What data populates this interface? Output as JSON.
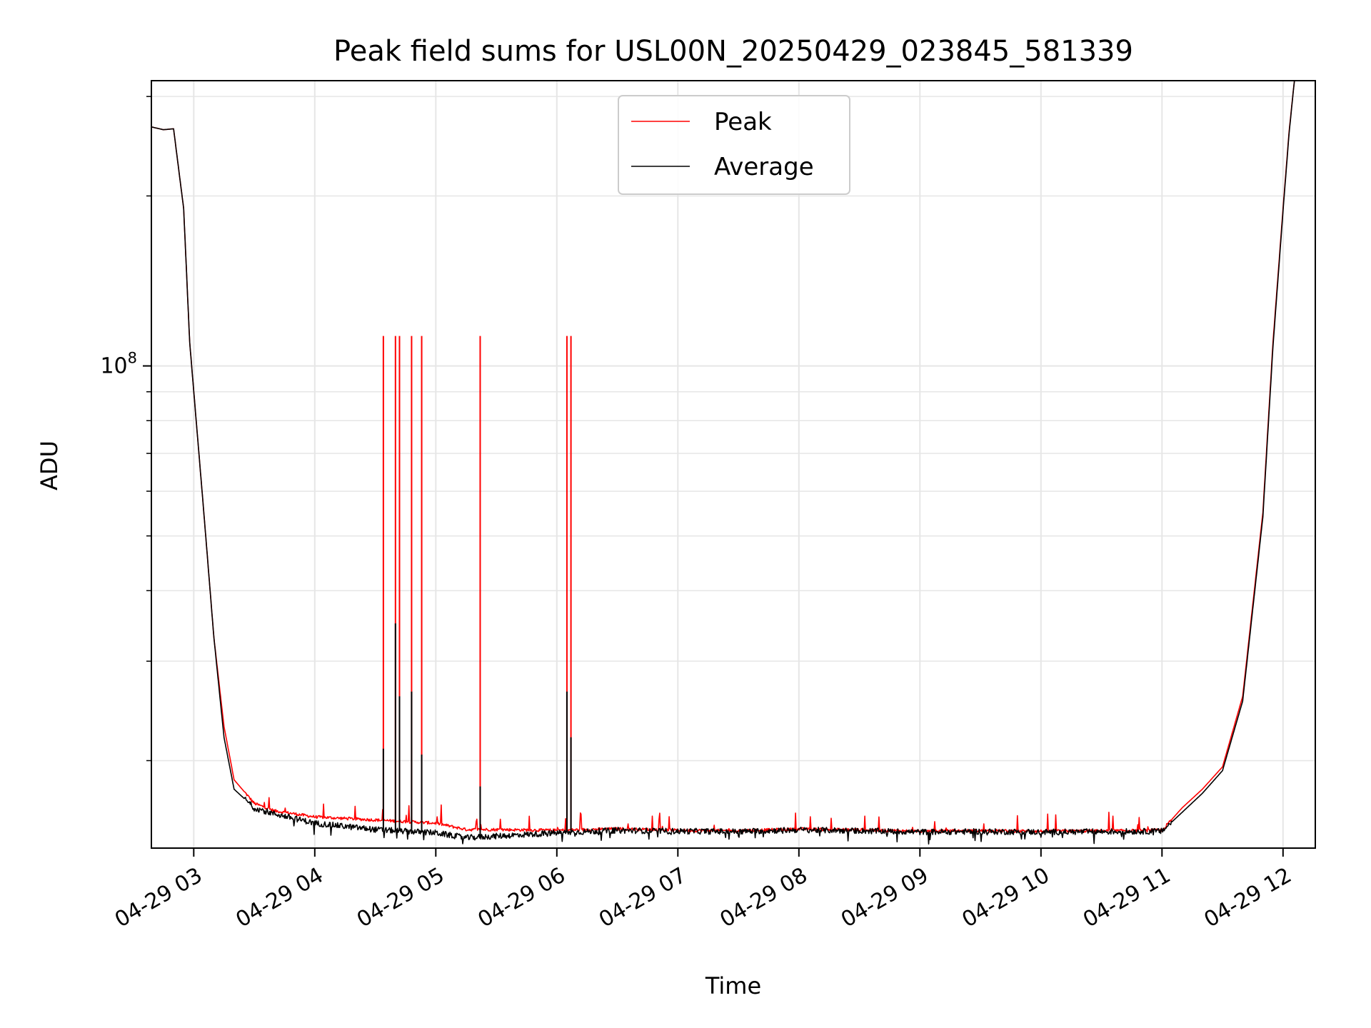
{
  "chart_data": {
    "type": "line",
    "title": "Peak field sums for USL00N_20250429_023845_581339",
    "xlabel": "Time",
    "ylabel": "ADU",
    "y_scale": "log",
    "ylim": [
      14000000,
      320000000
    ],
    "xlim": [
      "2025-04-29 02:39",
      "2025-04-29 12:16"
    ],
    "grid": true,
    "legend_position": "top-center",
    "x_ticks": [
      "04-29 03",
      "04-29 04",
      "04-29 05",
      "04-29 06",
      "04-29 07",
      "04-29 08",
      "04-29 09",
      "04-29 10",
      "04-29 11",
      "04-29 12"
    ],
    "y_major_ticks": [
      {
        "value": 100000000,
        "base": "10",
        "exp": "8"
      }
    ],
    "y_minor_ticks": [
      20000000,
      30000000,
      40000000,
      50000000,
      60000000,
      70000000,
      80000000,
      90000000,
      200000000,
      300000000
    ],
    "series": [
      {
        "name": "Peak",
        "color": "#ff0000",
        "points": [
          [
            "2025-04-29 02:39",
            265000000
          ],
          [
            "2025-04-29 02:45",
            262000000
          ],
          [
            "2025-04-29 02:50",
            263000000
          ],
          [
            "2025-04-29 02:55",
            190000000
          ],
          [
            "2025-04-29 02:58",
            110000000
          ],
          [
            "2025-04-29 03:05",
            55000000
          ],
          [
            "2025-04-29 03:10",
            33000000
          ],
          [
            "2025-04-29 03:15",
            23000000
          ],
          [
            "2025-04-29 03:20",
            18500000
          ],
          [
            "2025-04-29 03:30",
            16800000
          ],
          [
            "2025-04-29 03:40",
            16300000
          ],
          [
            "2025-04-29 04:00",
            15900000
          ],
          [
            "2025-04-29 04:30",
            15700000
          ],
          [
            "2025-04-29 05:00",
            15500000
          ],
          [
            "2025-04-29 05:15",
            15100000
          ],
          [
            "2025-04-29 05:30",
            15100000
          ],
          [
            "2025-04-29 06:00",
            15050000
          ],
          [
            "2025-04-29 06:30",
            15150000
          ],
          [
            "2025-04-29 07:00",
            15050000
          ],
          [
            "2025-04-29 07:30",
            15030000
          ],
          [
            "2025-04-29 08:00",
            15130000
          ],
          [
            "2025-04-29 08:30",
            15080000
          ],
          [
            "2025-04-29 09:00",
            15000000
          ],
          [
            "2025-04-29 09:30",
            15030000
          ],
          [
            "2025-04-29 10:00",
            15000000
          ],
          [
            "2025-04-29 10:30",
            15020000
          ],
          [
            "2025-04-29 11:00",
            15050000
          ],
          [
            "2025-04-29 11:10",
            16500000
          ],
          [
            "2025-04-29 11:20",
            17800000
          ],
          [
            "2025-04-29 11:30",
            19500000
          ],
          [
            "2025-04-29 11:40",
            26000000
          ],
          [
            "2025-04-29 11:50",
            55000000
          ],
          [
            "2025-04-29 11:55",
            110000000
          ],
          [
            "2025-04-29 12:00",
            190000000
          ],
          [
            "2025-04-29 12:03",
            260000000
          ],
          [
            "2025-04-29 12:06",
            330000000
          ]
        ],
        "spikes": [
          [
            "2025-04-29 04:34",
            113000000
          ],
          [
            "2025-04-29 04:40",
            113000000
          ],
          [
            "2025-04-29 04:42",
            113000000
          ],
          [
            "2025-04-29 04:48",
            113000000
          ],
          [
            "2025-04-29 04:53",
            113000000
          ],
          [
            "2025-04-29 05:22",
            113000000
          ],
          [
            "2025-04-29 06:05",
            113000000
          ],
          [
            "2025-04-29 06:07",
            113000000
          ]
        ]
      },
      {
        "name": "Average",
        "color": "#000000",
        "points": [
          [
            "2025-04-29 02:39",
            265000000
          ],
          [
            "2025-04-29 02:45",
            262000000
          ],
          [
            "2025-04-29 02:50",
            263000000
          ],
          [
            "2025-04-29 02:55",
            190000000
          ],
          [
            "2025-04-29 02:58",
            110000000
          ],
          [
            "2025-04-29 03:05",
            55000000
          ],
          [
            "2025-04-29 03:10",
            33000000
          ],
          [
            "2025-04-29 03:15",
            22000000
          ],
          [
            "2025-04-29 03:20",
            17800000
          ],
          [
            "2025-04-29 03:30",
            16500000
          ],
          [
            "2025-04-29 03:40",
            16100000
          ],
          [
            "2025-04-29 04:00",
            15500000
          ],
          [
            "2025-04-29 04:30",
            15100000
          ],
          [
            "2025-04-29 05:00",
            14900000
          ],
          [
            "2025-04-29 05:15",
            14600000
          ],
          [
            "2025-04-29 05:30",
            14700000
          ],
          [
            "2025-04-29 06:00",
            14900000
          ],
          [
            "2025-04-29 06:30",
            15050000
          ],
          [
            "2025-04-29 07:00",
            15000000
          ],
          [
            "2025-04-29 07:30",
            14980000
          ],
          [
            "2025-04-29 08:00",
            15080000
          ],
          [
            "2025-04-29 08:30",
            15030000
          ],
          [
            "2025-04-29 09:00",
            14950000
          ],
          [
            "2025-04-29 09:30",
            14980000
          ],
          [
            "2025-04-29 10:00",
            14950000
          ],
          [
            "2025-04-29 10:30",
            14970000
          ],
          [
            "2025-04-29 11:00",
            15000000
          ],
          [
            "2025-04-29 11:10",
            16200000
          ],
          [
            "2025-04-29 11:20",
            17500000
          ],
          [
            "2025-04-29 11:30",
            19200000
          ],
          [
            "2025-04-29 11:40",
            25500000
          ],
          [
            "2025-04-29 11:50",
            54000000
          ],
          [
            "2025-04-29 11:55",
            108000000
          ],
          [
            "2025-04-29 12:00",
            188000000
          ],
          [
            "2025-04-29 12:03",
            258000000
          ],
          [
            "2025-04-29 12:06",
            330000000
          ]
        ],
        "spikes": [
          [
            "2025-04-29 04:34",
            21000000
          ],
          [
            "2025-04-29 04:40",
            35000000
          ],
          [
            "2025-04-29 04:42",
            26000000
          ],
          [
            "2025-04-29 04:48",
            26500000
          ],
          [
            "2025-04-29 04:53",
            20500000
          ],
          [
            "2025-04-29 05:22",
            18000000
          ],
          [
            "2025-04-29 06:05",
            26500000
          ],
          [
            "2025-04-29 06:07",
            22000000
          ]
        ]
      }
    ]
  }
}
